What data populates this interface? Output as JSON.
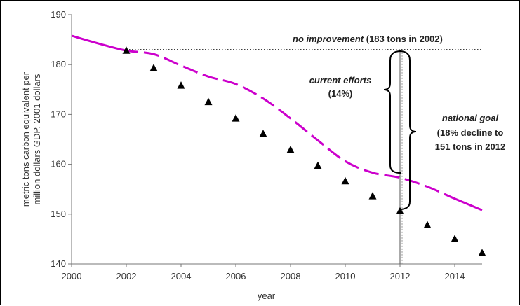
{
  "chart_data": {
    "type": "line",
    "xlabel": "year",
    "ylabel_lines": [
      "metric tons carbon equivalent per",
      "million dollars GDP, 2001 dollars"
    ],
    "xlim": [
      2000,
      2015
    ],
    "ylim": [
      140,
      190
    ],
    "x_ticks": [
      "2000",
      "2002",
      "2004",
      "2006",
      "2008",
      "2010",
      "2012",
      "2014"
    ],
    "y_ticks": [
      "140",
      "150",
      "160",
      "170",
      "180",
      "190"
    ],
    "grid": false,
    "series": [
      {
        "style": "dashed-line",
        "color": "#cc00cc",
        "x": [
          2000,
          2001,
          2002,
          2003,
          2004,
          2005,
          2006,
          2007,
          2008,
          2009,
          2010,
          2011,
          2012,
          2013,
          2014,
          2015
        ],
        "y": [
          185.8,
          184.2,
          182.8,
          182.1,
          179.8,
          177.6,
          176.1,
          173.2,
          169.2,
          164.8,
          160.6,
          158.3,
          157.3,
          155.5,
          153.1,
          150.8
        ]
      },
      {
        "style": "triangle-markers",
        "color": "#000000",
        "x": [
          2002,
          2003,
          2004,
          2005,
          2006,
          2007,
          2008,
          2009,
          2010,
          2011,
          2012,
          2013,
          2014,
          2015
        ],
        "y": [
          182.8,
          179.3,
          175.8,
          172.5,
          169.2,
          166.1,
          162.9,
          159.7,
          156.6,
          153.6,
          150.6,
          147.8,
          145.0,
          142.2
        ]
      },
      {
        "style": "dotted-line",
        "color": "#000000",
        "x": [
          2002,
          2015
        ],
        "y": [
          183,
          183
        ]
      }
    ],
    "annotations": {
      "no_improvement": {
        "italic": "no improvement",
        "rest": " (183 tons in 2002)"
      },
      "current_efforts": {
        "line1": "current efforts",
        "line2": "(14%)"
      },
      "national_goal": {
        "line1": "national goal",
        "line2": "(18% decline to",
        "line3": "151 tons in 2012"
      }
    }
  }
}
